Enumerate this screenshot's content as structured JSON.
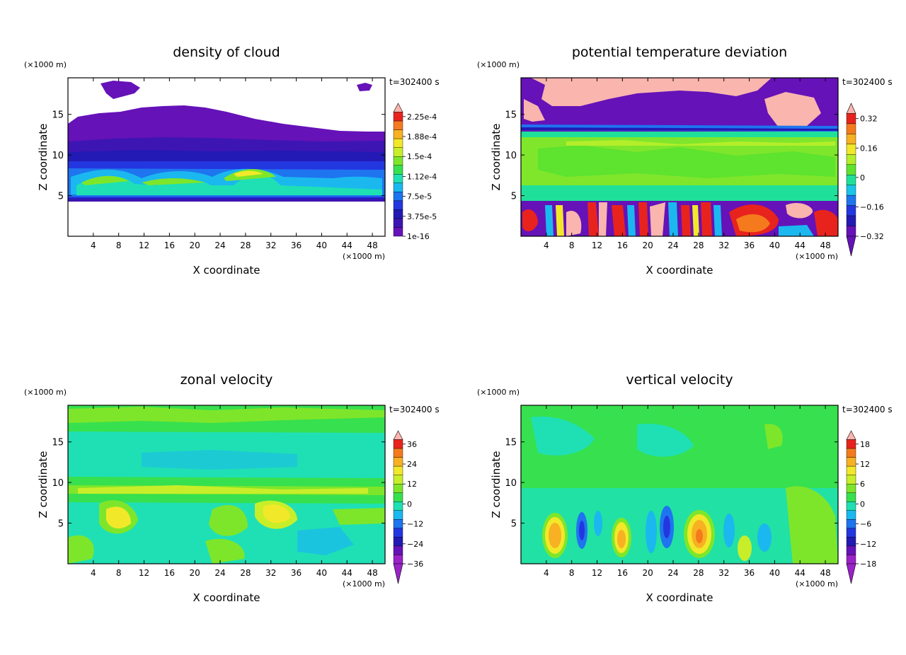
{
  "figure": {
    "timestamp": "t=302400 s"
  },
  "chart_data": [
    {
      "type": "heatmap",
      "title": "density of cloud",
      "xlabel": "X coordinate",
      "ylabel": "Z coordinate",
      "xunit": "(×1000 m)",
      "yunit": "(×1000 m)",
      "xlim": [
        0,
        50
      ],
      "ylim": [
        0,
        19.5
      ],
      "xticks": [
        "4",
        "8",
        "12",
        "16",
        "20",
        "24",
        "28",
        "32",
        "36",
        "40",
        "44",
        "48"
      ],
      "yticks": [
        "5",
        "10",
        "15"
      ],
      "colorbar_labels": [
        "2.25e-4",
        "1.88e-4",
        "1.5e-4",
        "1.12e-4",
        "7.5e-5",
        "3.75e-5",
        "1e-16"
      ],
      "colorbar_colors": [
        "#f9b5ae",
        "#e8231d",
        "#f57a1e",
        "#f7b122",
        "#f2e82a",
        "#c8ee2a",
        "#7ee62a",
        "#37e04e",
        "#1fe0b4",
        "#1ab8ef",
        "#1f74ef",
        "#2337e0",
        "#231ab5",
        "#3d15b2",
        "#6512b8"
      ],
      "cells_description": "cloud layer between z=4.5 and z=16 with high values near z=7"
    },
    {
      "type": "heatmap",
      "title": "potential temperature deviation",
      "xlabel": "X coordinate",
      "ylabel": "Z coordinate",
      "xunit": "(×1000 m)",
      "yunit": "(×1000 m)",
      "xlim": [
        0,
        50
      ],
      "ylim": [
        0,
        19.5
      ],
      "xticks": [
        "4",
        "8",
        "12",
        "16",
        "20",
        "24",
        "28",
        "32",
        "36",
        "40",
        "44",
        "48"
      ],
      "yticks": [
        "5",
        "10",
        "15"
      ],
      "colorbar_labels": [
        "0.32",
        "0.16",
        "0",
        "−0.16",
        "−0.32"
      ],
      "colorbar_colors": [
        "#f9b5ae",
        "#e8231d",
        "#f57a1e",
        "#f7b122",
        "#f2e82a",
        "#b4ee2a",
        "#5ee32e",
        "#1fe09a",
        "#1ac4e8",
        "#1f74ef",
        "#2337e0",
        "#231ab5",
        "#6512b8"
      ]
    },
    {
      "type": "heatmap",
      "title": "zonal velocity",
      "xlabel": "X coordinate",
      "ylabel": "Z coordinate",
      "xunit": "(×1000 m)",
      "yunit": "(×1000 m)",
      "xlim": [
        0,
        50
      ],
      "ylim": [
        0,
        19.5
      ],
      "xticks": [
        "4",
        "8",
        "12",
        "16",
        "20",
        "24",
        "28",
        "32",
        "36",
        "40",
        "44",
        "48"
      ],
      "yticks": [
        "5",
        "10",
        "15"
      ],
      "colorbar_labels": [
        "36",
        "24",
        "12",
        "0",
        "−12",
        "−24",
        "−36"
      ],
      "colorbar_colors": [
        "#f9b5ae",
        "#e8231d",
        "#f57a1e",
        "#f7b122",
        "#f2e82a",
        "#c8ee2a",
        "#7ee62a",
        "#37e04e",
        "#1fe0b4",
        "#1ab8ef",
        "#1f74ef",
        "#2337e0",
        "#231ab5",
        "#6512b8",
        "#9a22c8"
      ]
    },
    {
      "type": "heatmap",
      "title": "vertical velocity",
      "xlabel": "X coordinate",
      "ylabel": "Z coordinate",
      "xunit": "(×1000 m)",
      "yunit": "(×1000 m)",
      "xlim": [
        0,
        50
      ],
      "ylim": [
        0,
        19.5
      ],
      "xticks": [
        "4",
        "8",
        "12",
        "16",
        "20",
        "24",
        "28",
        "32",
        "36",
        "40",
        "44",
        "48"
      ],
      "yticks": [
        "5",
        "10",
        "15"
      ],
      "colorbar_labels": [
        "18",
        "12",
        "6",
        "0",
        "−6",
        "−12",
        "−18"
      ],
      "colorbar_colors": [
        "#f9b5ae",
        "#e8231d",
        "#f57a1e",
        "#f7b122",
        "#f2e82a",
        "#c8ee2a",
        "#7ee62a",
        "#37e04e",
        "#1fe0b4",
        "#1ab8ef",
        "#1f74ef",
        "#2337e0",
        "#231ab5",
        "#6512b8",
        "#9a22c8"
      ]
    }
  ]
}
